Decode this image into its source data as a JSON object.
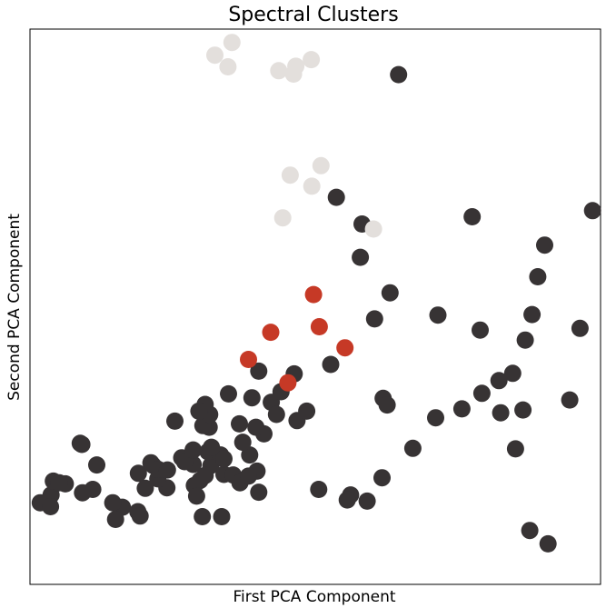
{
  "chart_data": {
    "type": "scatter",
    "title": "Spectral Clusters",
    "xlabel": "First PCA Component",
    "ylabel": "Second PCA Component",
    "xlim": [
      0,
      100
    ],
    "ylim": [
      0,
      100
    ],
    "ticks_visible": false,
    "grid": false,
    "legend": "none",
    "series": [
      {
        "color": "#373334",
        "points": [
          [
            64.6,
            91.8
          ],
          [
            77.5,
            66.2
          ],
          [
            53.7,
            69.7
          ],
          [
            58.2,
            64.9
          ],
          [
            57.9,
            58.9
          ],
          [
            63.1,
            52.5
          ],
          [
            71.5,
            48.5
          ],
          [
            78.9,
            45.8
          ],
          [
            60.4,
            47.8
          ],
          [
            94.6,
            33.2
          ],
          [
            96.4,
            46.1
          ],
          [
            98.6,
            67.3
          ],
          [
            90.2,
            61.1
          ],
          [
            89.0,
            55.4
          ],
          [
            88.0,
            48.6
          ],
          [
            86.8,
            44.0
          ],
          [
            84.6,
            38.0
          ],
          [
            82.2,
            36.7
          ],
          [
            79.2,
            34.4
          ],
          [
            75.7,
            31.6
          ],
          [
            71.1,
            30.0
          ],
          [
            67.1,
            24.5
          ],
          [
            61.7,
            19.2
          ],
          [
            59.1,
            15.0
          ],
          [
            56.2,
            16.1
          ],
          [
            50.6,
            17.1
          ],
          [
            52.7,
            39.6
          ],
          [
            46.8,
            29.5
          ],
          [
            40.1,
            16.6
          ],
          [
            39.8,
            20.4
          ],
          [
            38.5,
            23.3
          ],
          [
            34.0,
            19.8
          ],
          [
            31.7,
            21.4
          ],
          [
            29.8,
            18.7
          ],
          [
            28.8,
            17.8
          ],
          [
            28.6,
            21.6
          ],
          [
            31.2,
            23.9
          ],
          [
            35.6,
            19.7
          ],
          [
            36.8,
            18.3
          ],
          [
            37.3,
            25.6
          ],
          [
            33.4,
            23.3
          ],
          [
            31.8,
            24.7
          ],
          [
            31.4,
            28.3
          ],
          [
            30.3,
            28.6
          ],
          [
            31.5,
            30.6
          ],
          [
            30.7,
            32.4
          ],
          [
            29.6,
            31.2
          ],
          [
            25.4,
            29.4
          ],
          [
            24.0,
            17.4
          ],
          [
            21.2,
            21.9
          ],
          [
            22.4,
            19.0
          ],
          [
            19.0,
            20.0
          ],
          [
            16.2,
            13.9
          ],
          [
            14.5,
            14.7
          ],
          [
            11.7,
            21.5
          ],
          [
            11.0,
            17.1
          ],
          [
            15.0,
            11.7
          ],
          [
            9.2,
            16.5
          ],
          [
            8.8,
            25.4
          ],
          [
            6.2,
            18.1
          ],
          [
            3.7,
            16.1
          ],
          [
            4.1,
            18.6
          ],
          [
            1.8,
            14.7
          ],
          [
            3.6,
            14.0
          ],
          [
            5.1,
            18.3
          ],
          [
            9.1,
            25.2
          ],
          [
            18.9,
            13.1
          ],
          [
            19.3,
            12.3
          ],
          [
            20.2,
            17.3
          ],
          [
            21.6,
            21.4
          ],
          [
            22.5,
            20.7
          ],
          [
            24.1,
            20.6
          ],
          [
            26.6,
            22.8
          ],
          [
            27.1,
            22.1
          ],
          [
            28.6,
            24.2
          ],
          [
            30.7,
            19.6
          ],
          [
            29.2,
            15.9
          ],
          [
            30.2,
            12.2
          ],
          [
            33.6,
            12.2
          ],
          [
            34.0,
            22.6
          ],
          [
            38.3,
            19.5
          ],
          [
            41.0,
            27.1
          ],
          [
            42.3,
            32.8
          ],
          [
            43.2,
            30.6
          ],
          [
            44.0,
            34.7
          ],
          [
            39.6,
            28.3
          ],
          [
            34.8,
            34.3
          ],
          [
            36.7,
            28.9
          ],
          [
            38.9,
            33.6
          ],
          [
            40.1,
            38.4
          ],
          [
            46.3,
            37.9
          ],
          [
            48.5,
            31.2
          ],
          [
            61.9,
            33.5
          ],
          [
            62.6,
            32.3
          ],
          [
            55.6,
            15.2
          ],
          [
            90.8,
            7.3
          ],
          [
            87.6,
            9.7
          ],
          [
            85.1,
            24.4
          ],
          [
            86.4,
            31.4
          ],
          [
            82.5,
            30.9
          ]
        ]
      },
      {
        "color": "#c63926",
        "points": [
          [
            38.3,
            40.5
          ],
          [
            42.2,
            45.4
          ],
          [
            45.2,
            36.3
          ],
          [
            49.7,
            52.2
          ],
          [
            50.7,
            46.4
          ],
          [
            55.2,
            42.6
          ]
        ]
      },
      {
        "color": "#e3dfdc",
        "points": [
          [
            32.4,
            95.3
          ],
          [
            35.4,
            97.6
          ],
          [
            34.7,
            93.2
          ],
          [
            43.6,
            92.5
          ],
          [
            46.2,
            91.9
          ],
          [
            46.6,
            93.3
          ],
          [
            49.3,
            94.5
          ],
          [
            45.6,
            73.7
          ],
          [
            51.0,
            75.4
          ],
          [
            49.4,
            71.7
          ],
          [
            44.3,
            66.0
          ],
          [
            60.2,
            64.0
          ]
        ]
      }
    ]
  }
}
